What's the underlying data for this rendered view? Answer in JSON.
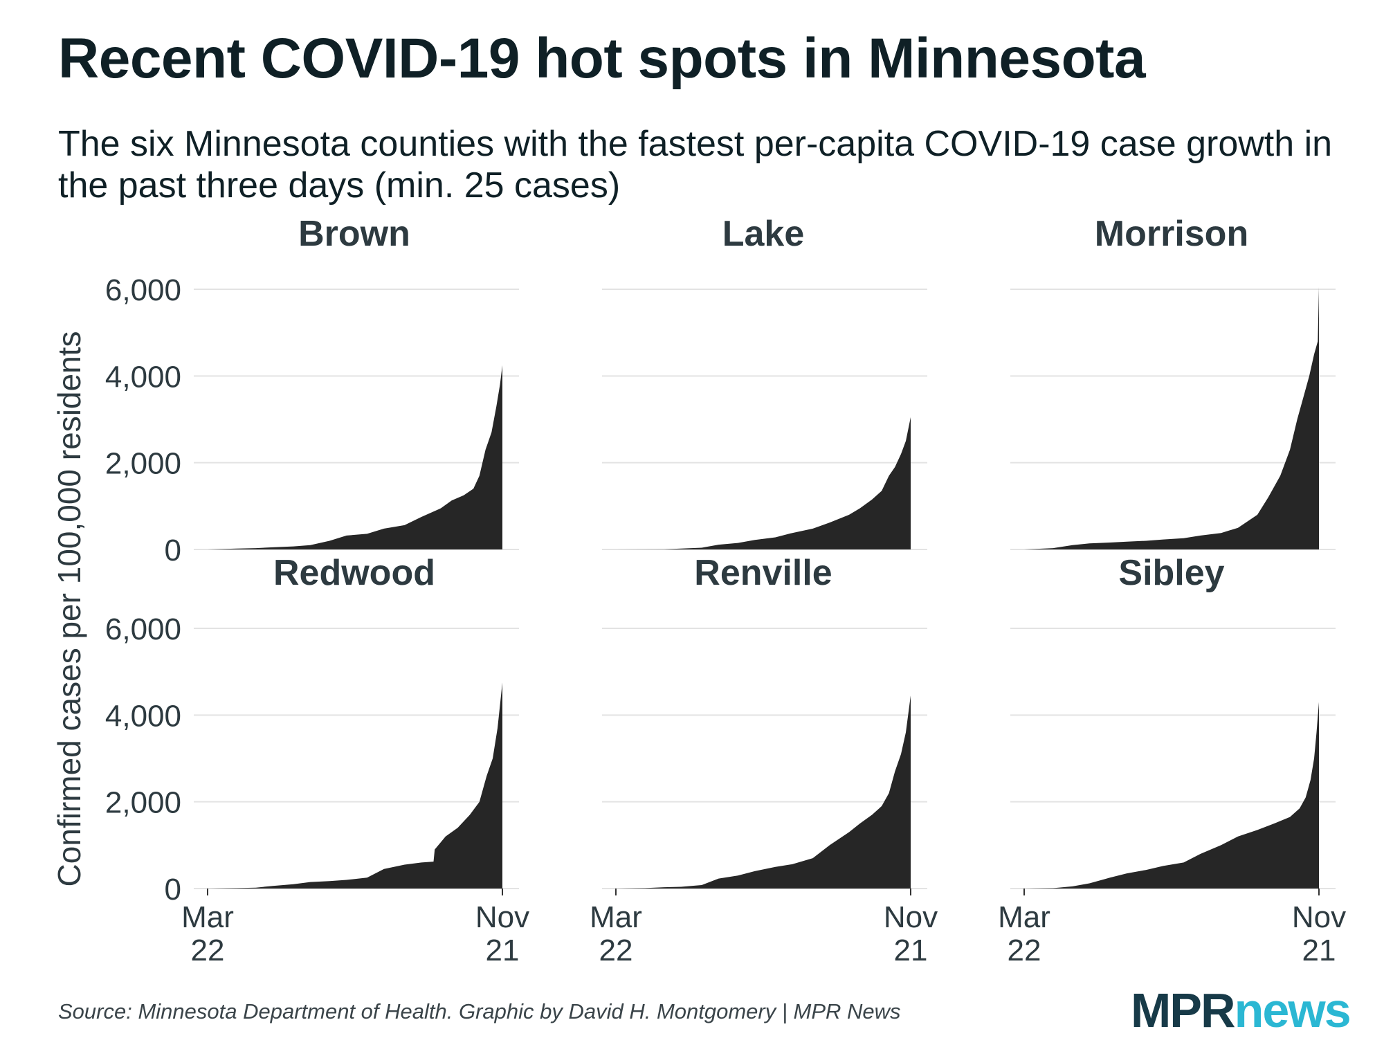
{
  "title": "Recent COVID-19 hot spots in Minnesota",
  "subtitle": "The six Minnesota counties with the fastest per-capita COVID-19 case growth in the past three days (min. 25 cases)",
  "source": "Source: Minnesota Department of Health. Graphic by David H. Montgomery | MPR News",
  "logo": {
    "part1": "MPR",
    "part2": "news"
  },
  "colors": {
    "area": "#262626",
    "grid": "#e3e3e3",
    "text": "#0f2026",
    "tick_text": "#2d3a40"
  },
  "chart_data": {
    "type": "area",
    "layout": "small-multiples",
    "ylabel": "Confirmed cases per 100,000 residents",
    "ylim": [
      0,
      6000
    ],
    "yticks": [
      {
        "value": 0,
        "label": "0"
      },
      {
        "value": 2000,
        "label": "2,000"
      },
      {
        "value": 4000,
        "label": "4,000"
      },
      {
        "value": 6000,
        "label": "6,000"
      }
    ],
    "xticks": [
      {
        "label_line1": "Mar",
        "label_line2": "22",
        "date": "2020-03-22"
      },
      {
        "label_line1": "Nov",
        "label_line2": "21",
        "date": "2020-11-21"
      }
    ],
    "grid": true,
    "panels": [
      {
        "name": "Brown",
        "x": [
          "2020-03-22",
          "2020-04-15",
          "2020-05-01",
          "2020-05-15",
          "2020-06-01",
          "2020-06-15",
          "2020-07-01",
          "2020-07-15",
          "2020-08-01",
          "2020-08-15",
          "2020-09-01",
          "2020-09-15",
          "2020-10-01",
          "2020-10-10",
          "2020-10-20",
          "2020-10-28",
          "2020-11-02",
          "2020-11-07",
          "2020-11-12",
          "2020-11-16",
          "2020-11-19",
          "2020-11-21"
        ],
        "values": [
          0,
          20,
          30,
          50,
          70,
          100,
          200,
          320,
          360,
          480,
          560,
          750,
          950,
          1130,
          1250,
          1400,
          1700,
          2300,
          2700,
          3300,
          3800,
          4250
        ]
      },
      {
        "name": "Lake",
        "x": [
          "2020-03-22",
          "2020-05-01",
          "2020-06-01",
          "2020-06-15",
          "2020-07-01",
          "2020-07-15",
          "2020-08-01",
          "2020-08-15",
          "2020-09-01",
          "2020-09-15",
          "2020-10-01",
          "2020-10-10",
          "2020-10-20",
          "2020-10-28",
          "2020-11-03",
          "2020-11-08",
          "2020-11-13",
          "2020-11-17",
          "2020-11-21"
        ],
        "values": [
          0,
          5,
          40,
          110,
          150,
          220,
          280,
          380,
          480,
          620,
          800,
          950,
          1150,
          1350,
          1700,
          1900,
          2200,
          2500,
          3050
        ]
      },
      {
        "name": "Morrison",
        "x": [
          "2020-03-22",
          "2020-04-15",
          "2020-05-01",
          "2020-05-15",
          "2020-06-01",
          "2020-06-15",
          "2020-07-01",
          "2020-07-15",
          "2020-08-01",
          "2020-08-15",
          "2020-09-01",
          "2020-09-15",
          "2020-10-01",
          "2020-10-10",
          "2020-10-20",
          "2020-10-28",
          "2020-11-03",
          "2020-11-08",
          "2020-11-13",
          "2020-11-17",
          "2020-11-20",
          "2020-11-21"
        ],
        "values": [
          0,
          30,
          100,
          140,
          160,
          180,
          200,
          230,
          260,
          320,
          380,
          500,
          800,
          1200,
          1700,
          2300,
          3000,
          3500,
          4000,
          4500,
          4800,
          6050
        ]
      },
      {
        "name": "Redwood",
        "x": [
          "2020-03-22",
          "2020-04-15",
          "2020-05-01",
          "2020-05-15",
          "2020-06-01",
          "2020-06-15",
          "2020-07-01",
          "2020-07-15",
          "2020-08-01",
          "2020-08-15",
          "2020-09-01",
          "2020-09-15",
          "2020-09-25",
          "2020-09-26",
          "2020-10-05",
          "2020-10-15",
          "2020-10-25",
          "2020-11-02",
          "2020-11-08",
          "2020-11-13",
          "2020-11-17",
          "2020-11-21"
        ],
        "values": [
          0,
          10,
          20,
          60,
          100,
          150,
          170,
          200,
          250,
          450,
          550,
          600,
          620,
          900,
          1200,
          1400,
          1700,
          2000,
          2600,
          3000,
          3700,
          4750
        ]
      },
      {
        "name": "Renville",
        "x": [
          "2020-03-22",
          "2020-04-15",
          "2020-05-01",
          "2020-05-15",
          "2020-06-01",
          "2020-06-15",
          "2020-07-01",
          "2020-07-15",
          "2020-08-01",
          "2020-08-15",
          "2020-09-01",
          "2020-09-15",
          "2020-10-01",
          "2020-10-10",
          "2020-10-20",
          "2020-10-28",
          "2020-11-03",
          "2020-11-08",
          "2020-11-13",
          "2020-11-17",
          "2020-11-21"
        ],
        "values": [
          0,
          10,
          30,
          40,
          80,
          230,
          300,
          400,
          500,
          560,
          700,
          1000,
          1300,
          1500,
          1700,
          1900,
          2200,
          2700,
          3100,
          3600,
          4450
        ]
      },
      {
        "name": "Sibley",
        "x": [
          "2020-03-22",
          "2020-04-15",
          "2020-05-01",
          "2020-05-15",
          "2020-06-01",
          "2020-06-15",
          "2020-07-01",
          "2020-07-15",
          "2020-08-01",
          "2020-08-15",
          "2020-09-01",
          "2020-09-15",
          "2020-10-01",
          "2020-10-15",
          "2020-10-28",
          "2020-11-05",
          "2020-11-10",
          "2020-11-14",
          "2020-11-17",
          "2020-11-19",
          "2020-11-21"
        ],
        "values": [
          0,
          10,
          50,
          120,
          250,
          350,
          430,
          520,
          600,
          800,
          1000,
          1200,
          1350,
          1500,
          1650,
          1850,
          2100,
          2500,
          3000,
          3600,
          4300
        ]
      }
    ]
  }
}
